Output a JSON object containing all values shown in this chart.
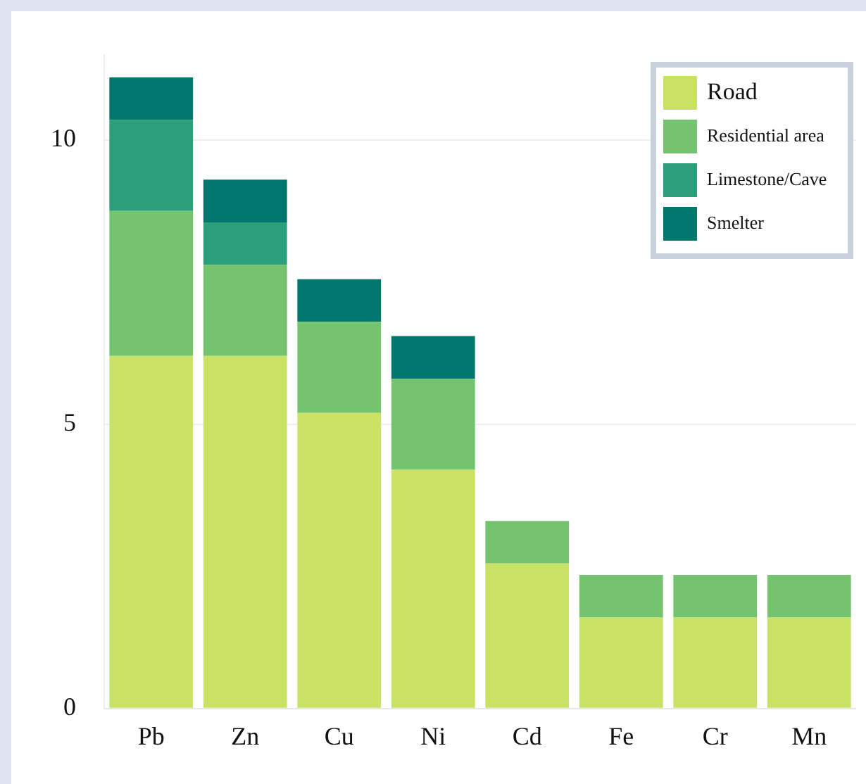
{
  "chart_data": {
    "type": "bar",
    "stacked": true,
    "categories": [
      "Pb",
      "Zn",
      "Cu",
      "Ni",
      "Cd",
      "Fe",
      "Cr",
      "Mn"
    ],
    "series": [
      {
        "name": "Road",
        "color": "#c9e265",
        "values": [
          6.2,
          6.2,
          5.2,
          4.2,
          2.55,
          1.6,
          1.6,
          1.6
        ]
      },
      {
        "name": "Residential area",
        "color": "#74c46f",
        "values": [
          2.55,
          1.6,
          1.6,
          1.6,
          0.75,
          0.75,
          0.75,
          0.75
        ]
      },
      {
        "name": "Limestone/Cave",
        "color": "#2c9f7a",
        "values": [
          1.6,
          0.75,
          0,
          0,
          0,
          0,
          0,
          0
        ]
      },
      {
        "name": "Smelter",
        "color": "#00766f",
        "values": [
          0.75,
          0.75,
          0.75,
          0.75,
          0,
          0,
          0,
          0
        ]
      }
    ],
    "ylim": [
      0,
      11.5
    ],
    "yticks": [
      0,
      5,
      10
    ],
    "grid": "y",
    "legend": "top right"
  }
}
